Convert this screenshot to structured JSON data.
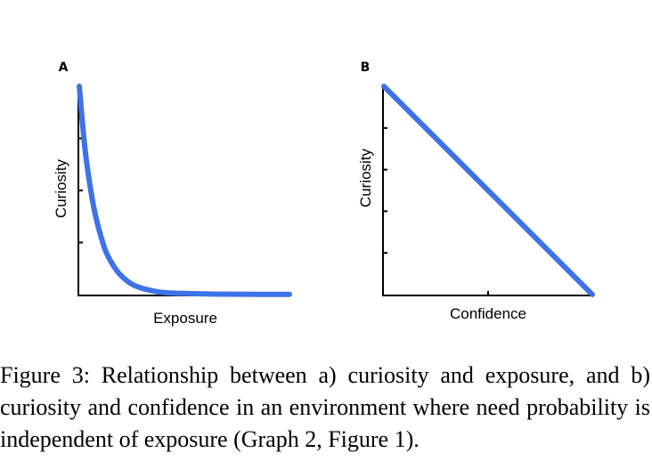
{
  "chart_data": [
    {
      "type": "line",
      "panel": "A",
      "title": "",
      "xlabel": "Exposure",
      "ylabel": "Curiosity",
      "xlim": [
        0,
        10
      ],
      "ylim": [
        0,
        1
      ],
      "series": [
        {
          "color": "#3d72e8",
          "x": [
            0,
            0.25,
            0.5,
            0.75,
            1,
            1.25,
            1.5,
            1.75,
            2,
            2.5,
            3,
            3.5,
            4,
            5,
            6,
            7,
            8,
            9,
            10
          ],
          "y": [
            1.0,
            0.72,
            0.53,
            0.39,
            0.29,
            0.21,
            0.16,
            0.12,
            0.09,
            0.05,
            0.03,
            0.018,
            0.01,
            0.005,
            0.003,
            0.002,
            0.0015,
            0.001,
            0.001
          ]
        }
      ],
      "grid": false,
      "legend": "none"
    },
    {
      "type": "line",
      "panel": "B",
      "title": "",
      "xlabel": "Confidence",
      "ylabel": "Curiosity",
      "xlim": [
        0,
        10
      ],
      "ylim": [
        0,
        1
      ],
      "series": [
        {
          "color": "#3d72e8",
          "x": [
            0,
            10
          ],
          "y": [
            1.0,
            0.0
          ]
        }
      ],
      "grid": false,
      "legend": "none"
    }
  ],
  "caption": "Figure 3: Relationship between a) curiosity and exposure, and b) curiosity and confidence in an environment where need probability is independent of exposure (Graph 2, Figure 1)."
}
